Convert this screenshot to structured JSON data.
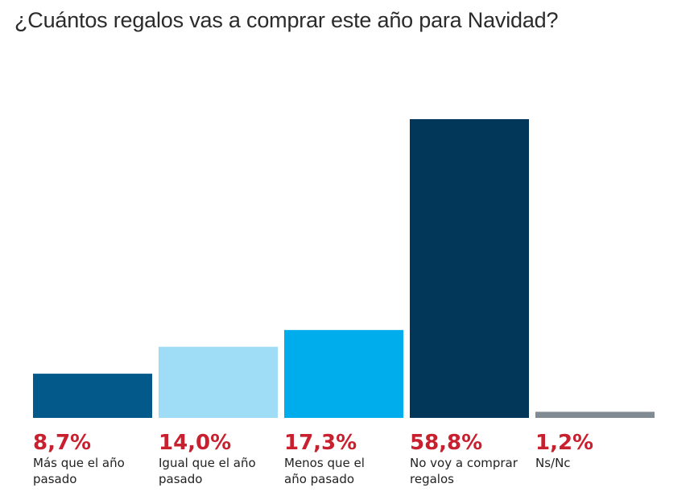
{
  "chart_data": {
    "type": "bar",
    "title": "¿Cuántos regalos vas a comprar este año para Navidad?",
    "xlabel": "",
    "ylabel": "",
    "ylim": [
      0,
      60
    ],
    "grid": false,
    "categories": [
      [
        "Más que el año",
        "pasado"
      ],
      [
        "Igual que el año",
        "pasado"
      ],
      [
        "Menos que el",
        "año pasado"
      ],
      [
        "No voy a comprar",
        "regalos"
      ],
      [
        "Ns/Nc"
      ]
    ],
    "values": [
      8.7,
      14.0,
      17.3,
      58.8,
      1.2
    ],
    "value_labels": [
      "8,7%",
      "14,0%",
      "17,3%",
      "58,8%",
      "1,2%"
    ],
    "colors": [
      "#03598a",
      "#9fdcf6",
      "#00adec",
      "#03375a",
      "#7f8a93"
    ],
    "value_label_color": "#c8202f"
  }
}
